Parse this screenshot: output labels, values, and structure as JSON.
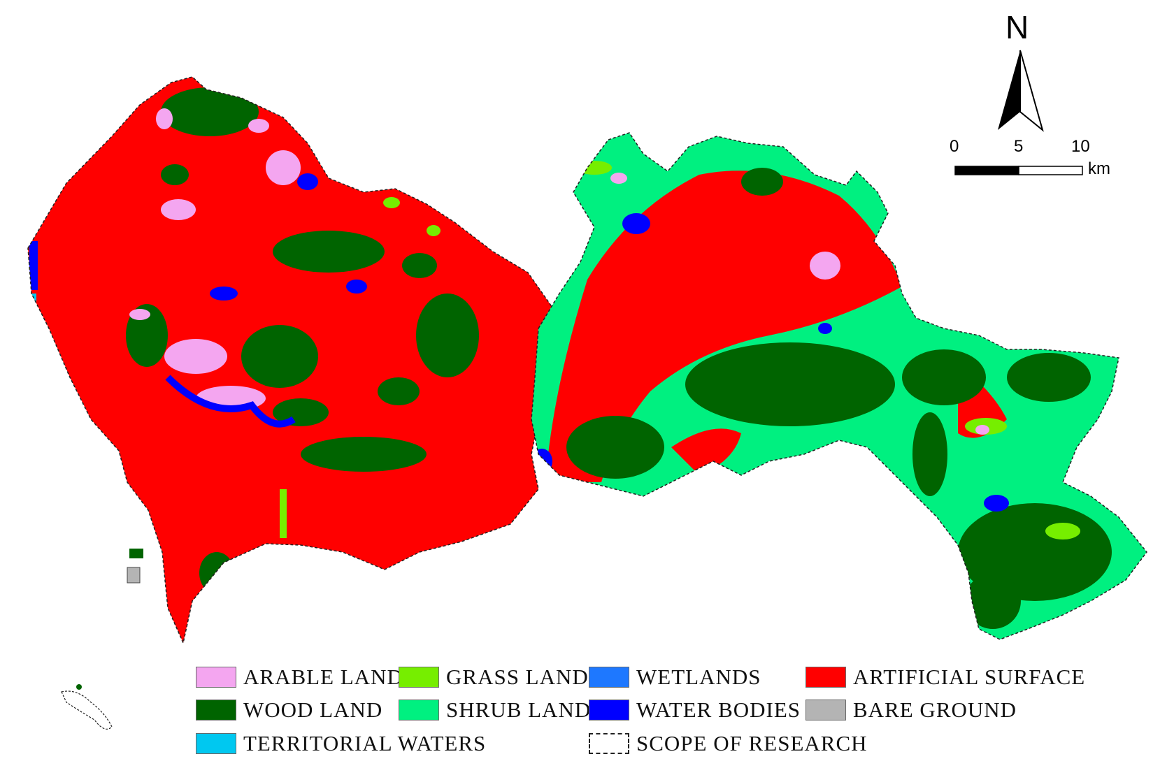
{
  "map": {
    "north_label": "N",
    "scale": {
      "ticks": [
        "0",
        "5",
        "10"
      ],
      "unit": "km"
    },
    "colors": {
      "arable_land": "#f4a6f0",
      "wood_land": "#006400",
      "territorial_waters": "#00c8f0",
      "grass_land": "#76ee00",
      "shrub_land": "#00f080",
      "wetlands": "#1e78ff",
      "water_bodies": "#0000ff",
      "artificial_surface": "#ff0000",
      "bare_ground": "#b4b4b4"
    }
  },
  "legend": {
    "arable_land": "ARABLE LAND",
    "grass_land": "GRASS LAND",
    "wetlands": "WETLANDS",
    "artificial_surface": "ARTIFICIAL SURFACE",
    "wood_land": "WOOD LAND",
    "shrub_land": "SHRUB LAND",
    "water_bodies": "WATER BODIES",
    "bare_ground": "BARE GROUND",
    "territorial_waters": "TERRITORIAL WATERS",
    "scope_of_research": "SCOPE OF RESEARCH"
  }
}
